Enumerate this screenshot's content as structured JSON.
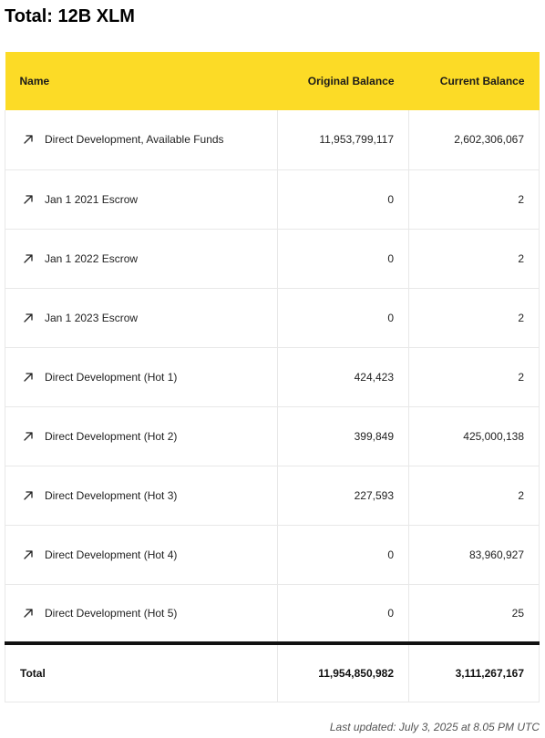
{
  "title": "Total: 12B XLM",
  "table": {
    "columns": {
      "name": "Name",
      "original_balance": "Original Balance",
      "current_balance": "Current Balance"
    },
    "rows": [
      {
        "name": "Direct Development, Available Funds",
        "original": "11,953,799,117",
        "current": "2,602,306,067"
      },
      {
        "name": "Jan 1 2021 Escrow",
        "original": "0",
        "current": "2"
      },
      {
        "name": "Jan 1 2022 Escrow",
        "original": "0",
        "current": "2"
      },
      {
        "name": "Jan 1 2023 Escrow",
        "original": "0",
        "current": "2"
      },
      {
        "name": "Direct Development (Hot 1)",
        "original": "424,423",
        "current": "2"
      },
      {
        "name": "Direct Development (Hot 2)",
        "original": "399,849",
        "current": "425,000,138"
      },
      {
        "name": "Direct Development (Hot 3)",
        "original": "227,593",
        "current": "2"
      },
      {
        "name": "Direct Development (Hot 4)",
        "original": "0",
        "current": "83,960,927"
      },
      {
        "name": "Direct Development (Hot 5)",
        "original": "0",
        "current": "25"
      }
    ],
    "total": {
      "label": "Total",
      "original": "11,954,850,982",
      "current": "3,111,267,167"
    },
    "row_icon": "external-arrow-icon"
  },
  "last_updated": "Last updated: July 3, 2025 at 8.05 PM UTC",
  "colors": {
    "header_background": "#fcdb26",
    "total_divider": "#111111"
  }
}
